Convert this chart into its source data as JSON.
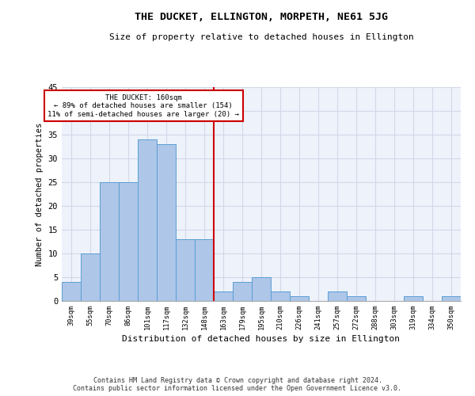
{
  "title": "THE DUCKET, ELLINGTON, MORPETH, NE61 5JG",
  "subtitle": "Size of property relative to detached houses in Ellington",
  "xlabel": "Distribution of detached houses by size in Ellington",
  "ylabel": "Number of detached properties",
  "categories": [
    "39sqm",
    "55sqm",
    "70sqm",
    "86sqm",
    "101sqm",
    "117sqm",
    "132sqm",
    "148sqm",
    "163sqm",
    "179sqm",
    "195sqm",
    "210sqm",
    "226sqm",
    "241sqm",
    "257sqm",
    "272sqm",
    "288sqm",
    "303sqm",
    "319sqm",
    "334sqm",
    "350sqm"
  ],
  "values": [
    4,
    10,
    25,
    25,
    34,
    33,
    13,
    13,
    2,
    4,
    5,
    2,
    1,
    0,
    2,
    1,
    0,
    0,
    1,
    0,
    1
  ],
  "bar_color": "#aec6e8",
  "bar_edge_color": "#5a9fd4",
  "vline_x_index": 8,
  "vline_color": "#cc0000",
  "annotation_line1": "THE DUCKET: 160sqm",
  "annotation_line2": "← 89% of detached houses are smaller (154)",
  "annotation_line3": "11% of semi-detached houses are larger (20) →",
  "annotation_box_color": "#cc0000",
  "ylim": [
    0,
    45
  ],
  "yticks": [
    0,
    5,
    10,
    15,
    20,
    25,
    30,
    35,
    40,
    45
  ],
  "grid_color": "#d0d8e8",
  "background_color": "#eef2fb",
  "footer_line1": "Contains HM Land Registry data © Crown copyright and database right 2024.",
  "footer_line2": "Contains public sector information licensed under the Open Government Licence v3.0."
}
